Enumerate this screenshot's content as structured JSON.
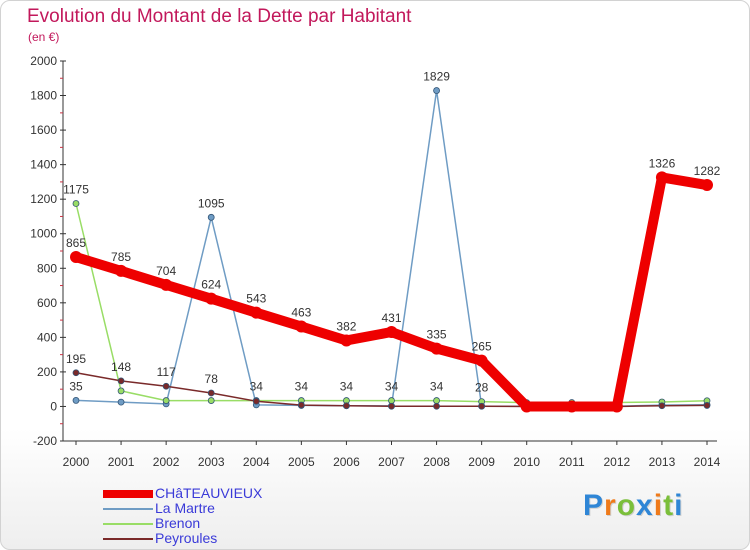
{
  "chart_data": {
    "type": "line",
    "title": "Evolution du Montant de la Dette par Habitant",
    "subtitle": "(en €)",
    "xlabel": "",
    "ylabel": "",
    "categories": [
      "2000",
      "2001",
      "2002",
      "2003",
      "2004",
      "2005",
      "2006",
      "2007",
      "2008",
      "2009",
      "2010",
      "2011",
      "2012",
      "2013",
      "2014"
    ],
    "ylim": [
      -200,
      2000
    ],
    "yticks": [
      -200,
      0,
      200,
      400,
      600,
      800,
      1000,
      1200,
      1400,
      1600,
      1800,
      2000
    ],
    "grid": false,
    "legend_position": "bottom-left",
    "series": [
      {
        "name": "CHâTEAUVIEUX",
        "color": "#ee0000",
        "values": [
          865,
          785,
          704,
          624,
          543,
          463,
          382,
          431,
          335,
          265,
          0,
          0,
          0,
          1326,
          1282
        ],
        "labels": [
          "865",
          "785",
          "704",
          "624",
          "543",
          "463",
          "382",
          "431",
          "335",
          "265",
          "",
          "",
          "",
          "1326",
          "1282"
        ]
      },
      {
        "name": "La Martre",
        "color": "#6f9cc4",
        "values": [
          35,
          25,
          15,
          1095,
          9,
          6,
          4,
          3,
          1829,
          2,
          1,
          1,
          1,
          8,
          10
        ],
        "labels": [
          "35",
          "",
          "",
          "1095",
          "",
          "",
          "",
          "",
          "1829",
          "",
          "",
          "",
          "",
          "",
          ""
        ]
      },
      {
        "name": "Brenon",
        "color": "#99dd66",
        "values": [
          1175,
          90,
          34,
          34,
          34,
          34,
          34,
          34,
          34,
          28,
          22,
          23,
          23,
          26,
          33
        ],
        "labels": [
          "1175",
          "",
          "",
          "",
          "34",
          "34",
          "34",
          "34",
          "34",
          "28",
          "",
          "",
          "",
          "",
          ""
        ]
      },
      {
        "name": "Peyroules",
        "color": "#7a2a2a",
        "values": [
          195,
          148,
          117,
          78,
          30,
          8,
          4,
          1,
          1,
          1,
          0,
          0,
          0,
          4,
          6
        ],
        "labels": [
          "195",
          "148",
          "117",
          "78",
          "",
          "",
          "",
          "",
          "",
          "",
          "",
          "",
          "",
          "",
          ""
        ]
      }
    ]
  },
  "logo_text": "Proxiti",
  "colors": {
    "title": "#c2185b",
    "legend_text": "#3a3ad8",
    "axis": "#333333"
  }
}
